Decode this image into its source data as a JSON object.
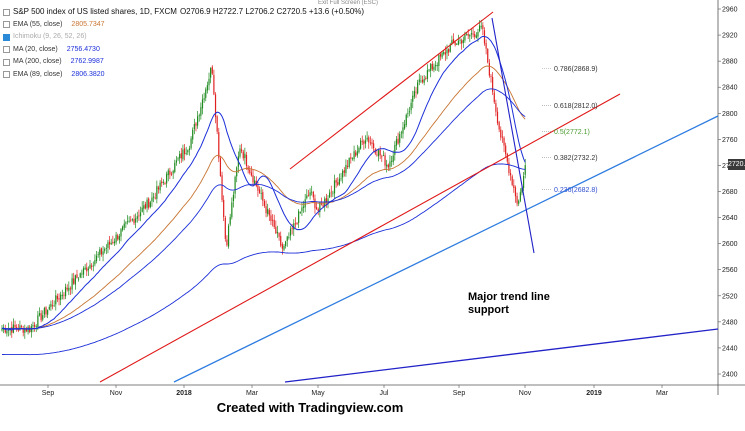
{
  "header": {
    "symbol": "S&P 500 index of US listed shares, 1D, FXCM",
    "ohlc": "O2706.9  H2722.7  L2706.2  C2720.5  +13.6 (+0.50%)",
    "exit_fullscreen": "Exit Full Screen (ESC)"
  },
  "legend": [
    {
      "label": "EMA (55, close)",
      "value": "2805.7347",
      "color": "#c87533"
    },
    {
      "label": "Ichimoku (9, 26, 52, 26)",
      "value": "",
      "color": "#aaaaaa",
      "faded": true
    },
    {
      "label": "MA (20, close)",
      "value": "2756.4730",
      "color": "#1c2fd8"
    },
    {
      "label": "MA (200, close)",
      "value": "2762.9987",
      "color": "#1c2fd8"
    },
    {
      "label": "EMA (89, close)",
      "value": "2806.3820",
      "color": "#1c2fd8"
    }
  ],
  "footer": {
    "text": "Created with Tradingview.com"
  },
  "annotation": {
    "line1": "Major trend line",
    "line2": "support"
  },
  "price_tag": "2720.5",
  "colors": {
    "candle_up": "#1e8a1e",
    "candle_down": "#e02020",
    "channel": "#e01818",
    "trend_light": "#2f7de0",
    "trend_dark": "#2222c8",
    "ma20": "#1c2fd8",
    "ema55": "#c87533",
    "ma200": "#1c2fd8"
  },
  "chart_data": {
    "type": "candlestick",
    "title": "S&P 500 index of US listed shares, 1D, FXCM",
    "ylim": [
      2380,
      2970
    ],
    "y_ticks": [
      2400,
      2440,
      2480,
      2520,
      2560,
      2600,
      2640,
      2680,
      2720,
      2760,
      2800,
      2840,
      2880,
      2920,
      2960
    ],
    "x_ticks": [
      "Sep",
      "Nov",
      "2018",
      "Mar",
      "May",
      "Jul",
      "Sep",
      "Nov",
      "2019",
      "Mar",
      "May"
    ],
    "close_anchors": [
      [
        "Aug-2017",
        2470
      ],
      [
        "Sep-2017",
        2470
      ],
      [
        "Oct-2017",
        2540
      ],
      [
        "Nov-2017",
        2600
      ],
      [
        "Dec-2017",
        2665
      ],
      [
        "Jan-2018",
        2755
      ],
      [
        "Jan-2018",
        2872
      ],
      [
        "Feb-2018",
        2595
      ],
      [
        "Feb-2018",
        2750
      ],
      [
        "Mar-2018",
        2590
      ],
      [
        "Apr-2018",
        2680
      ],
      [
        "May-2018",
        2650
      ],
      [
        "Jun-2018",
        2765
      ],
      [
        "Jul-2018",
        2720
      ],
      [
        "Aug-2018",
        2850
      ],
      [
        "Sep-2018",
        2905
      ],
      [
        "Sep-2018",
        2930
      ],
      [
        "Oct-2018",
        2770
      ],
      [
        "Oct-2018",
        2660
      ],
      [
        "Nov-2018",
        2720.5
      ]
    ],
    "fib_levels": [
      {
        "label": "0.786(2868.9)",
        "value": 2868.9
      },
      {
        "label": "0.618(2812.0)",
        "value": 2812.0
      },
      {
        "label": "0.5(2772.1)",
        "value": 2772.1
      },
      {
        "label": "0.382(2732.2)",
        "value": 2732.2
      },
      {
        "label": "0.236(2682.8)",
        "value": 2682.8
      }
    ],
    "last_price": 2720.5
  }
}
